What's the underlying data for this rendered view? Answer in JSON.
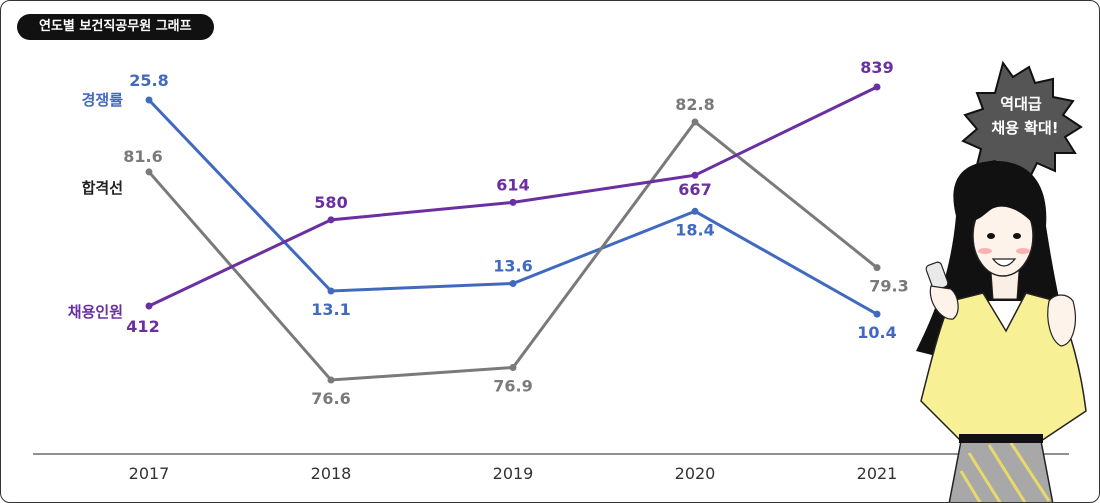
{
  "title": "연도별 보건직공무원 그래프",
  "badge": {
    "line1": "역대급",
    "line2": "채용 확대!"
  },
  "chart_data": {
    "type": "line",
    "categories": [
      "2017",
      "2018",
      "2019",
      "2020",
      "2021"
    ],
    "series": [
      {
        "name": "경쟁률",
        "values": [
          25.8,
          13.1,
          13.6,
          18.4,
          10.4
        ],
        "labels": [
          "25.8",
          "13.1",
          "13.6",
          "18.4",
          "10.4"
        ],
        "color": "#4169c0"
      },
      {
        "name": "합격선",
        "values": [
          81.6,
          76.6,
          76.9,
          82.8,
          79.3
        ],
        "labels": [
          "81.6",
          "76.6",
          "76.9",
          "82.8",
          "79.3"
        ],
        "color": "#7a7a7a"
      },
      {
        "name": "채용인원",
        "values": [
          412,
          580,
          614,
          667,
          839
        ],
        "labels": [
          "412",
          "580",
          "614",
          "667",
          "839"
        ],
        "color": "#6a2fa0"
      }
    ],
    "xlabel": "",
    "ylabel": "",
    "grid": false
  }
}
